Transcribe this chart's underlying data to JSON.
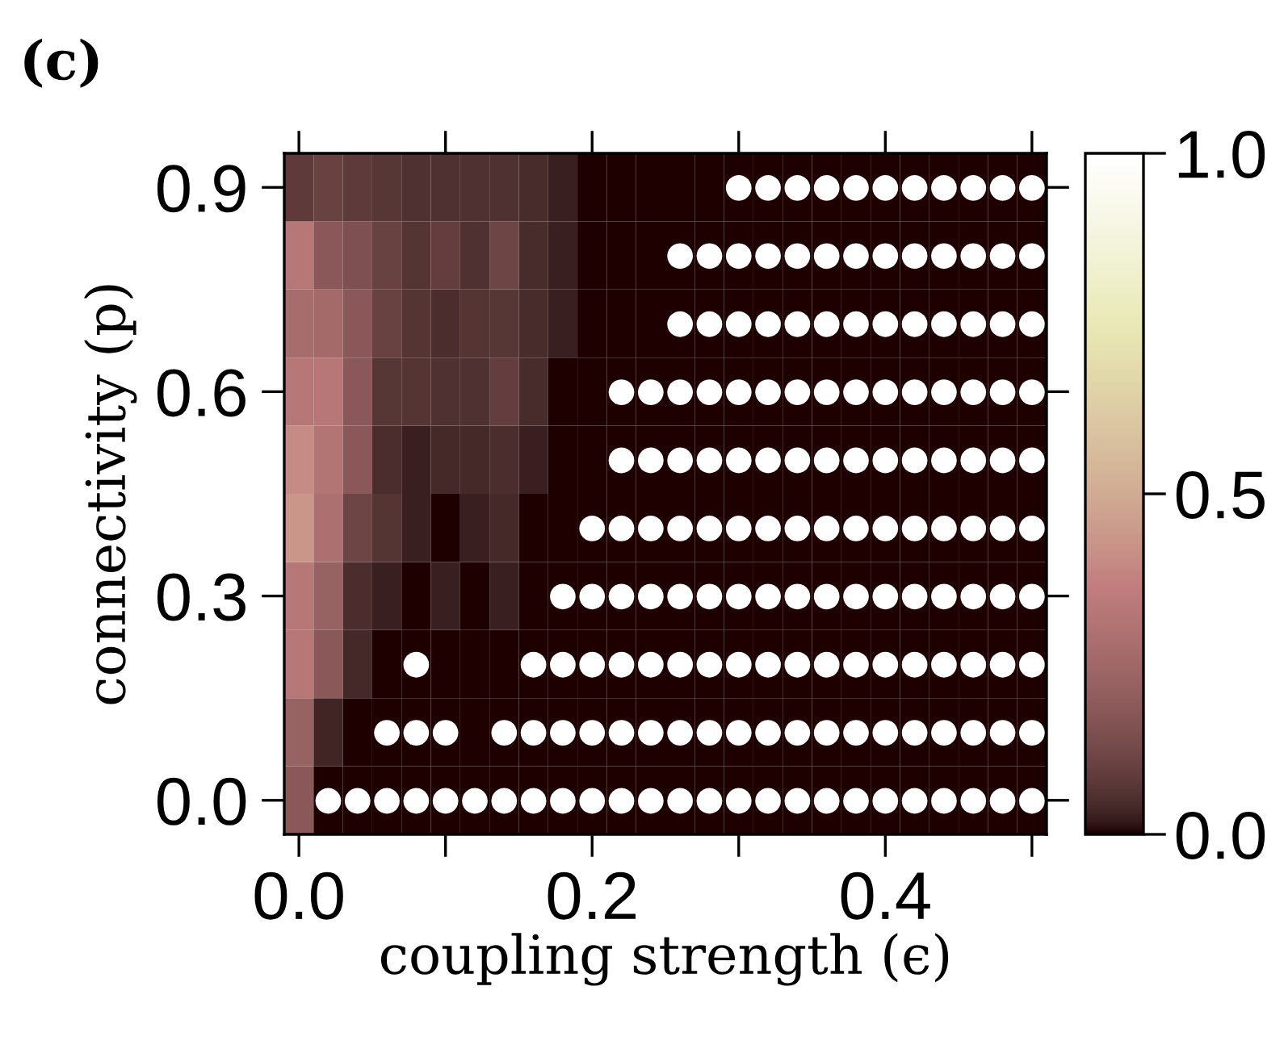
{
  "chart_data": {
    "type": "heatmap",
    "title": "(c)",
    "xlabel": "coupling strength (ϵ)",
    "ylabel": "connectivity (p)",
    "x": [
      0.0,
      0.02,
      0.04,
      0.06,
      0.08,
      0.1,
      0.12,
      0.14,
      0.16,
      0.18,
      0.2,
      0.22,
      0.24,
      0.26,
      0.28,
      0.3,
      0.32,
      0.34,
      0.36,
      0.38,
      0.4,
      0.42,
      0.44,
      0.46,
      0.48,
      0.5
    ],
    "y_categories": [
      "0.9",
      null,
      null,
      "0.6",
      null,
      null,
      "0.3",
      null,
      null,
      "0.0"
    ],
    "cells": [
      [
        0.08,
        0.1,
        0.08,
        0.07,
        0.055,
        0.055,
        0.055,
        0.055,
        0.045,
        0.025,
        0,
        0,
        0,
        0,
        0,
        0,
        0,
        0,
        0,
        0,
        0,
        0,
        0,
        0,
        0,
        0
      ],
      [
        0.33,
        0.18,
        0.15,
        0.1,
        0.065,
        0.09,
        0.055,
        0.11,
        0.045,
        0.025,
        0,
        0,
        0,
        0,
        0,
        0,
        0,
        0,
        0,
        0,
        0,
        0,
        0,
        0,
        0,
        0
      ],
      [
        0.27,
        0.26,
        0.18,
        0.1,
        0.065,
        0.05,
        0.065,
        0.07,
        0.045,
        0.025,
        0,
        0,
        0,
        0,
        0,
        0,
        0,
        0,
        0,
        0,
        0,
        0,
        0,
        0,
        0,
        0
      ],
      [
        0.33,
        0.33,
        0.18,
        0.07,
        0.065,
        0.055,
        0.055,
        0.09,
        0.045,
        0,
        0,
        0,
        0,
        0,
        0,
        0,
        0,
        0,
        0,
        0,
        0,
        0,
        0,
        0,
        0,
        0
      ],
      [
        0.4,
        0.31,
        0.18,
        0.05,
        0.025,
        0.04,
        0.04,
        0.05,
        0.025,
        0,
        0,
        0,
        0,
        0,
        0,
        0,
        0,
        0,
        0,
        0,
        0,
        0,
        0,
        0,
        0,
        0
      ],
      [
        0.43,
        0.29,
        0.11,
        0.065,
        0.025,
        0,
        0.025,
        0.04,
        0,
        0,
        0,
        0,
        0,
        0,
        0,
        0,
        0,
        0,
        0,
        0,
        0,
        0,
        0,
        0,
        0,
        0
      ],
      [
        0.33,
        0.22,
        0.05,
        0.025,
        0,
        0.025,
        0,
        0.025,
        0,
        0,
        0,
        0,
        0,
        0,
        0,
        0,
        0,
        0,
        0,
        0,
        0,
        0,
        0,
        0,
        0,
        0
      ],
      [
        0.33,
        0.18,
        0.04,
        0,
        0,
        0,
        0,
        0,
        0,
        0,
        0,
        0,
        0,
        0,
        0,
        0,
        0,
        0,
        0,
        0,
        0,
        0,
        0,
        0,
        0,
        0
      ],
      [
        0.22,
        0.035,
        0,
        0,
        0,
        0,
        0,
        0,
        0,
        0,
        0,
        0,
        0,
        0,
        0,
        0,
        0,
        0,
        0,
        0,
        0,
        0,
        0,
        0,
        0,
        0
      ],
      [
        0.18,
        0,
        0,
        0,
        0,
        0,
        0,
        0,
        0,
        0,
        0,
        0,
        0,
        0,
        0,
        0,
        0,
        0,
        0,
        0,
        0,
        0,
        0,
        0,
        0,
        0
      ]
    ],
    "cell_labels": [
      [
        null,
        null,
        null,
        null,
        null,
        null,
        null,
        null,
        null,
        null,
        null,
        null,
        null,
        null,
        null,
        "●",
        "●",
        "●",
        "●",
        "●",
        "●",
        "●",
        "●",
        "●",
        "●",
        "●"
      ],
      [
        null,
        null,
        null,
        null,
        null,
        null,
        null,
        null,
        null,
        null,
        null,
        null,
        null,
        "●",
        "●",
        "●",
        "●",
        "●",
        "●",
        "●",
        "●",
        "●",
        "●",
        "●",
        "●",
        "●"
      ],
      [
        null,
        null,
        null,
        null,
        null,
        null,
        null,
        null,
        null,
        null,
        null,
        null,
        null,
        "●",
        "●",
        "●",
        "●",
        "●",
        "●",
        "●",
        "●",
        "●",
        "●",
        "●",
        "●",
        "●"
      ],
      [
        null,
        null,
        null,
        null,
        null,
        null,
        null,
        null,
        null,
        null,
        null,
        "●",
        "●",
        "●",
        "●",
        "●",
        "●",
        "●",
        "●",
        "●",
        "●",
        "●",
        "●",
        "●",
        "●",
        "●"
      ],
      [
        null,
        null,
        null,
        null,
        null,
        null,
        null,
        null,
        null,
        null,
        null,
        "●",
        "●",
        "●",
        "●",
        "●",
        "●",
        "●",
        "●",
        "●",
        "●",
        "●",
        "●",
        "●",
        "●",
        "●"
      ],
      [
        null,
        null,
        null,
        null,
        null,
        null,
        null,
        null,
        null,
        null,
        "●",
        "●",
        "●",
        "●",
        "●",
        "●",
        "●",
        "●",
        "●",
        "●",
        "●",
        "●",
        "●",
        "●",
        "●",
        "●"
      ],
      [
        null,
        null,
        null,
        null,
        null,
        null,
        null,
        null,
        null,
        "●",
        "●",
        "●",
        "●",
        "●",
        "●",
        "●",
        "●",
        "●",
        "●",
        "●",
        "●",
        "●",
        "●",
        "●",
        "●",
        "●"
      ],
      [
        null,
        null,
        null,
        null,
        "●",
        null,
        null,
        null,
        "●",
        "●",
        "●",
        "●",
        "●",
        "●",
        "●",
        "●",
        "●",
        "●",
        "●",
        "●",
        "●",
        "●",
        "●",
        "●",
        "●",
        "●"
      ],
      [
        null,
        null,
        null,
        "●",
        "●",
        "●",
        null,
        "●",
        "●",
        "●",
        "●",
        "●",
        "●",
        "●",
        "●",
        "●",
        "●",
        "●",
        "●",
        "●",
        "●",
        "●",
        "●",
        "●",
        "●",
        "●"
      ],
      [
        null,
        "●",
        "●",
        "●",
        "●",
        "●",
        "●",
        "●",
        "●",
        "●",
        "●",
        "●",
        "●",
        "●",
        "●",
        "●",
        "●",
        "●",
        "●",
        "●",
        "●",
        "●",
        "●",
        "●",
        "●",
        "●"
      ]
    ],
    "clim": [
      0.0,
      1.0
    ],
    "cticks": [
      {
        "value": 0.0,
        "label": "0.0"
      },
      {
        "value": 0.5,
        "label": "0.5"
      },
      {
        "value": 1.0,
        "label": "1.0"
      }
    ],
    "xlim": [
      -0.01,
      0.51
    ],
    "xticks": [
      {
        "value": 0.0,
        "label": "0.0"
      },
      {
        "value": 0.1,
        "label": null
      },
      {
        "value": 0.2,
        "label": "0.2"
      },
      {
        "value": 0.3,
        "label": null
      },
      {
        "value": 0.4,
        "label": "0.4"
      },
      {
        "value": 0.5,
        "label": null
      }
    ]
  }
}
